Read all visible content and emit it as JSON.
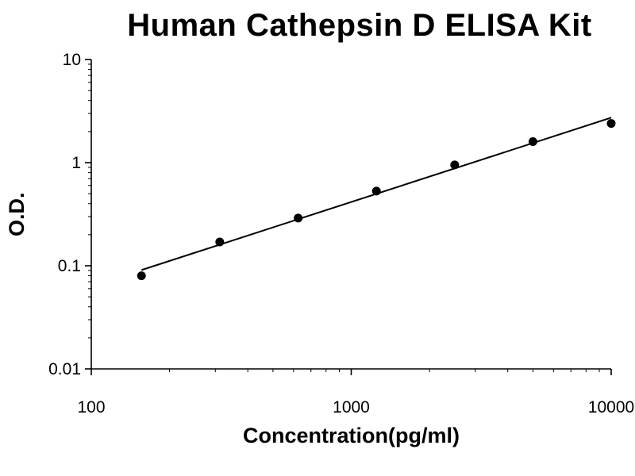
{
  "chart_data": {
    "type": "scatter",
    "title": "Human Cathepsin D ELISA Kit",
    "xlabel": "Concentration(pg/ml)",
    "ylabel": "O.D.",
    "xscale": "log",
    "yscale": "log",
    "xlim": [
      100,
      10000
    ],
    "ylim": [
      0.01,
      10
    ],
    "x_ticks": [
      100,
      1000,
      10000
    ],
    "y_ticks": [
      10,
      1,
      0.1,
      0.01
    ],
    "x": [
      156,
      312,
      625,
      1250,
      2500,
      5000,
      10000
    ],
    "y": [
      0.08,
      0.17,
      0.29,
      0.53,
      0.95,
      1.6,
      2.4
    ],
    "fit": "linear-loglog-trendline",
    "grid": false,
    "legend": false,
    "point_color": "#000000",
    "line_color": "#000000",
    "axis_color": "#000000",
    "background": "#ffffff"
  }
}
